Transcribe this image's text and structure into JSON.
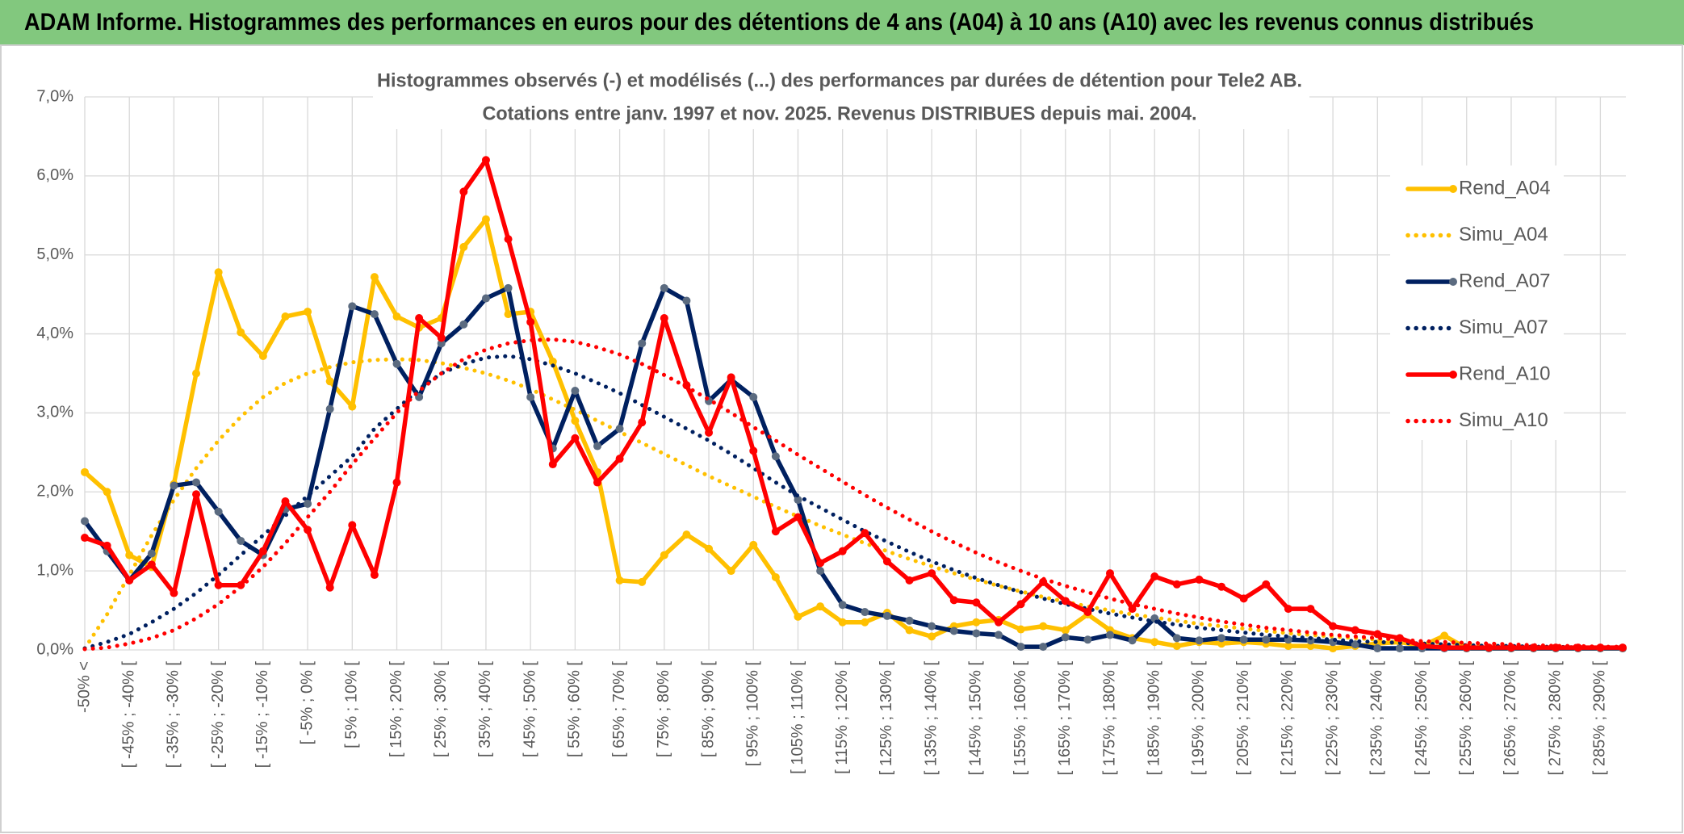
{
  "header": {
    "title": "ADAM Informe. Histogrammes des performances en euros pour des détentions de 4 ans (A04) à 10 ans (A10) avec les revenus connus distribués"
  },
  "chart_data": {
    "type": "line",
    "title": "Histogrammes observés (-) et modélisés (...) des performances par durées de détention pour Tele2 AB.",
    "subtitle": "Cotations entre janv. 1997 et nov. 2025. Revenus DISTRIBUES depuis mai. 2004.",
    "categories": [
      "-50% <",
      null,
      "[ -45% ; -40% [",
      null,
      "[ -35% ; -30% [",
      null,
      "[ -25% ; -20% [",
      null,
      "[ -15% ; -10% [",
      null,
      "[ -5% ; 0% [",
      null,
      "[ 5% ; 10% [",
      null,
      "[ 15% ; 20% [",
      null,
      "[ 25% ; 30% [",
      null,
      "[ 35% ; 40% [",
      null,
      "[ 45% ; 50% [",
      null,
      "[ 55% ; 60% [",
      null,
      "[ 65% ; 70% [",
      null,
      "[ 75% ; 80% [",
      null,
      "[ 85% ; 90% [",
      null,
      "[ 95% ; 100% [",
      null,
      "[ 105% ; 110% [",
      null,
      "[ 115% ; 120% [",
      null,
      "[ 125% ; 130% [",
      null,
      "[ 135% ; 140% [",
      null,
      "[ 145% ; 150% [",
      null,
      "[ 155% ; 160% [",
      null,
      "[ 165% ; 170% [",
      null,
      "[ 175% ; 180% [",
      null,
      "[ 185% ; 190% [",
      null,
      "[ 195% ; 200% [",
      null,
      "[ 205% ; 210% [",
      null,
      "[ 215% ; 220% [",
      null,
      "[ 225% ; 230% [",
      null,
      "[ 235% ; 240% [",
      null,
      "[ 245% ; 250% [",
      null,
      "[ 255% ; 260% [",
      null,
      "[ 265% ; 270% [",
      null,
      "[ 275% ; 280% [",
      null,
      "[ 285% ; 290% [",
      null
    ],
    "series": [
      {
        "name": "Rend_A04",
        "color": "#ffc000",
        "line_style": "solid",
        "marker": true,
        "marker_color": "#ffc000",
        "values": [
          2.25,
          2.0,
          1.2,
          1.05,
          2.1,
          3.5,
          4.78,
          4.02,
          3.72,
          4.22,
          4.28,
          3.4,
          3.08,
          4.72,
          4.22,
          4.08,
          4.2,
          5.1,
          5.45,
          4.25,
          4.28,
          3.65,
          2.9,
          2.25,
          0.88,
          0.86,
          1.2,
          1.46,
          1.28,
          1.0,
          1.33,
          0.92,
          0.42,
          0.55,
          0.35,
          0.35,
          0.47,
          0.25,
          0.17,
          0.3,
          0.35,
          0.38,
          0.26,
          0.3,
          0.25,
          0.45,
          0.25,
          0.15,
          0.1,
          0.05,
          0.1,
          0.08,
          0.1,
          0.08,
          0.05,
          0.05,
          0.02,
          0.05,
          0.08,
          0.1,
          0.05,
          0.18,
          0.02,
          0.02,
          0.02,
          0.02,
          0.02,
          0.02,
          0.02,
          0.02
        ]
      },
      {
        "name": "Simu_A04",
        "color": "#ffc000",
        "line_style": "dotted",
        "marker": false,
        "values": [
          0.02,
          0.45,
          0.95,
          1.45,
          1.9,
          2.3,
          2.65,
          2.95,
          3.2,
          3.38,
          3.5,
          3.58,
          3.64,
          3.67,
          3.68,
          3.67,
          3.63,
          3.57,
          3.5,
          3.41,
          3.3,
          3.17,
          3.04,
          2.9,
          2.76,
          2.62,
          2.48,
          2.34,
          2.2,
          2.07,
          1.94,
          1.81,
          1.69,
          1.57,
          1.46,
          1.35,
          1.25,
          1.15,
          1.06,
          0.97,
          0.89,
          0.81,
          0.74,
          0.67,
          0.61,
          0.55,
          0.5,
          0.45,
          0.41,
          0.37,
          0.33,
          0.3,
          0.27,
          0.24,
          0.21,
          0.19,
          0.17,
          0.15,
          0.13,
          0.12,
          0.1,
          0.09,
          0.08,
          0.07,
          0.06,
          0.05,
          0.05,
          0.04,
          0.04,
          0.03
        ]
      },
      {
        "name": "Rend_A07",
        "color": "#002060",
        "line_style": "solid",
        "marker": true,
        "marker_color": "#5b6b80",
        "values": [
          1.63,
          1.25,
          0.88,
          1.22,
          2.08,
          2.12,
          1.75,
          1.38,
          1.2,
          1.78,
          1.85,
          3.05,
          4.35,
          4.25,
          3.62,
          3.2,
          3.88,
          4.12,
          4.45,
          4.58,
          3.2,
          2.55,
          3.28,
          2.58,
          2.8,
          3.88,
          4.58,
          4.42,
          3.15,
          3.42,
          3.2,
          2.45,
          1.9,
          1.0,
          0.57,
          0.48,
          0.43,
          0.37,
          0.3,
          0.24,
          0.21,
          0.19,
          0.04,
          0.04,
          0.16,
          0.13,
          0.19,
          0.12,
          0.4,
          0.15,
          0.12,
          0.15,
          0.13,
          0.13,
          0.13,
          0.12,
          0.1,
          0.07,
          0.02,
          0.02,
          0.02,
          0.02,
          0.02,
          0.02,
          0.02,
          0.02,
          0.02,
          0.02,
          0.02,
          0.02
        ]
      },
      {
        "name": "Simu_A07",
        "color": "#002060",
        "line_style": "dotted",
        "marker": false,
        "values": [
          0.02,
          0.1,
          0.2,
          0.35,
          0.52,
          0.72,
          0.95,
          1.2,
          1.45,
          1.7,
          1.95,
          2.2,
          2.45,
          2.8,
          3.05,
          3.3,
          3.5,
          3.62,
          3.7,
          3.72,
          3.68,
          3.6,
          3.5,
          3.38,
          3.25,
          3.1,
          2.95,
          2.8,
          2.65,
          2.48,
          2.3,
          2.12,
          1.95,
          1.8,
          1.65,
          1.5,
          1.37,
          1.24,
          1.12,
          1.01,
          0.91,
          0.82,
          0.73,
          0.65,
          0.58,
          0.52,
          0.46,
          0.41,
          0.36,
          0.32,
          0.28,
          0.25,
          0.22,
          0.19,
          0.17,
          0.15,
          0.13,
          0.11,
          0.1,
          0.09,
          0.08,
          0.07,
          0.06,
          0.05,
          0.05,
          0.04,
          0.04,
          0.03,
          0.03,
          0.03
        ]
      },
      {
        "name": "Rend_A10",
        "color": "#ff0000",
        "line_style": "solid",
        "marker": true,
        "marker_color": "#ff0000",
        "values": [
          1.42,
          1.32,
          0.88,
          1.08,
          0.72,
          1.97,
          0.82,
          0.82,
          1.25,
          1.88,
          1.52,
          0.79,
          1.58,
          0.95,
          2.12,
          4.2,
          3.95,
          5.8,
          6.2,
          5.2,
          4.15,
          2.35,
          2.68,
          2.12,
          2.42,
          2.88,
          4.2,
          3.35,
          2.75,
          3.45,
          2.52,
          1.5,
          1.68,
          1.1,
          1.25,
          1.48,
          1.12,
          0.88,
          0.97,
          0.63,
          0.6,
          0.35,
          0.58,
          0.86,
          0.62,
          0.48,
          0.97,
          0.52,
          0.93,
          0.83,
          0.89,
          0.8,
          0.65,
          0.83,
          0.52,
          0.52,
          0.3,
          0.25,
          0.2,
          0.15,
          0.05,
          0.03,
          0.03,
          0.03,
          0.03,
          0.03,
          0.03,
          0.03,
          0.03,
          0.03
        ]
      },
      {
        "name": "Simu_A10",
        "color": "#ff0000",
        "line_style": "dotted",
        "marker": false,
        "values": [
          0.01,
          0.03,
          0.08,
          0.15,
          0.25,
          0.4,
          0.58,
          0.8,
          1.05,
          1.35,
          1.68,
          2.0,
          2.35,
          2.68,
          3.0,
          3.28,
          3.5,
          3.68,
          3.8,
          3.88,
          3.92,
          3.93,
          3.9,
          3.83,
          3.74,
          3.62,
          3.48,
          3.33,
          3.17,
          3.0,
          2.82,
          2.65,
          2.47,
          2.3,
          2.13,
          1.96,
          1.8,
          1.65,
          1.5,
          1.36,
          1.23,
          1.11,
          1.0,
          0.9,
          0.81,
          0.73,
          0.65,
          0.58,
          0.52,
          0.46,
          0.41,
          0.36,
          0.32,
          0.28,
          0.25,
          0.22,
          0.19,
          0.17,
          0.15,
          0.13,
          0.11,
          0.1,
          0.09,
          0.08,
          0.07,
          0.06,
          0.05,
          0.05,
          0.04,
          0.04
        ]
      }
    ],
    "ylim": [
      0,
      7
    ],
    "yticks": [
      {
        "value": 0,
        "label": "0,0%"
      },
      {
        "value": 1,
        "label": "1,0%"
      },
      {
        "value": 2,
        "label": "2,0%"
      },
      {
        "value": 3,
        "label": "3,0%"
      },
      {
        "value": 4,
        "label": "4,0%"
      },
      {
        "value": 5,
        "label": "5,0%"
      },
      {
        "value": 6,
        "label": "6,0%"
      },
      {
        "value": 7,
        "label": "7,0%"
      }
    ],
    "grid": true,
    "legend": "right"
  }
}
